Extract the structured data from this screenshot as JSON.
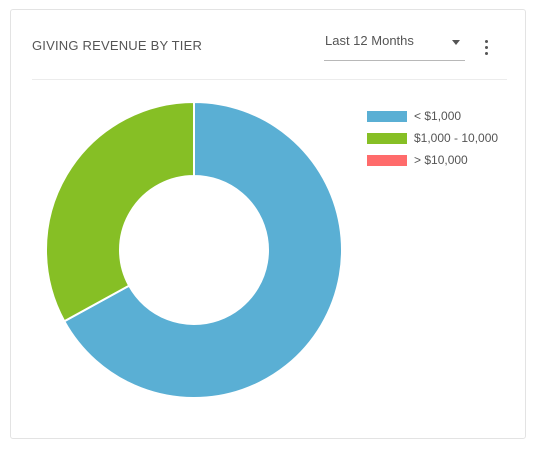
{
  "widget": {
    "title": "GIVING REVENUE BY TIER",
    "period_select": {
      "value": "Last 12 Months"
    },
    "menu_icon": "more-vertical-icon"
  },
  "chart_data": {
    "type": "pie",
    "subtype": "donut",
    "title": "GIVING REVENUE BY TIER",
    "legend_position": "right",
    "categories": [
      "< $1,000",
      "$1,000 - 10,000",
      "> $10,000"
    ],
    "values": [
      67,
      33,
      0
    ],
    "colors": [
      "#5aafd4",
      "#86bf25",
      "#ff6b6b"
    ]
  },
  "legend": {
    "items": [
      {
        "label": "< $1,000",
        "color": "#5aafd4"
      },
      {
        "label": "$1,000 - 10,000",
        "color": "#86bf25"
      },
      {
        "label": "> $10,000",
        "color": "#ff6b6b"
      }
    ]
  }
}
